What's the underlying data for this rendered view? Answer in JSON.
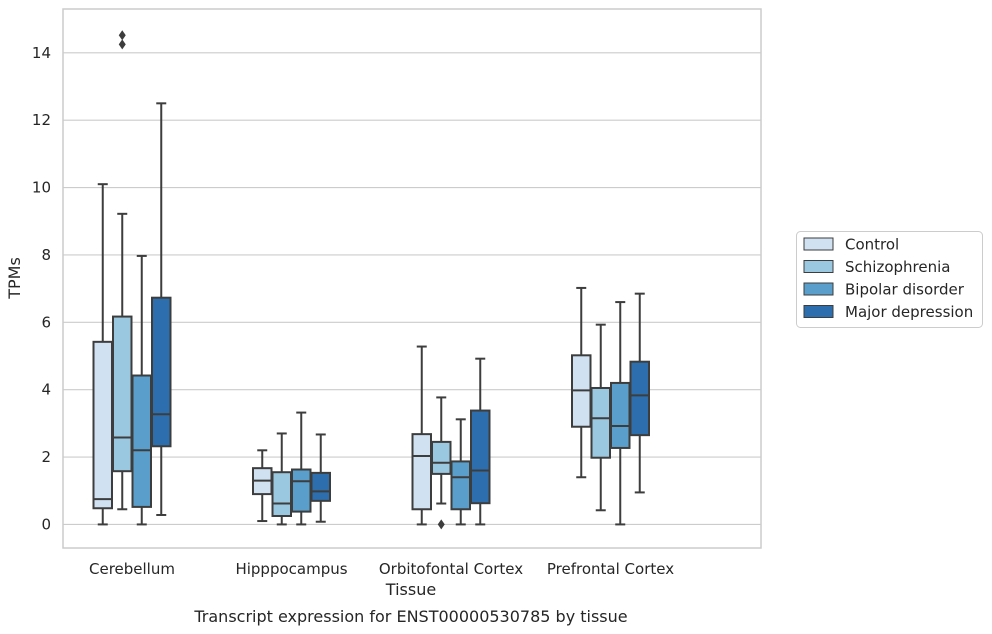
{
  "chart_data": {
    "type": "box",
    "caption": "Transcript expression for ENST00000530785 by tissue",
    "xlabel": "Tissue",
    "ylabel": "TPMs",
    "ylim": [
      -0.7,
      15.3
    ],
    "yticks": [
      0,
      2,
      4,
      6,
      8,
      10,
      12,
      14
    ],
    "grid": "horizontal",
    "legend_position": "right",
    "categories": [
      "Cerebellum",
      "Hipppocampus",
      "Orbitofontal Cortex",
      "Prefrontal Cortex"
    ],
    "series": [
      {
        "name": "Control",
        "color": "#d0e1f2",
        "boxes": [
          {
            "whislo": 0.0,
            "q1": 0.48,
            "median": 0.75,
            "q3": 5.42,
            "whishi": 10.1,
            "fliers": []
          },
          {
            "whislo": 0.1,
            "q1": 0.9,
            "median": 1.3,
            "q3": 1.67,
            "whishi": 2.2,
            "fliers": []
          },
          {
            "whislo": 0.0,
            "q1": 0.45,
            "median": 2.03,
            "q3": 2.68,
            "whishi": 5.28,
            "fliers": []
          },
          {
            "whislo": 1.4,
            "q1": 2.9,
            "median": 3.98,
            "q3": 5.02,
            "whishi": 7.02,
            "fliers": []
          }
        ]
      },
      {
        "name": "Schizophrenia",
        "color": "#9ac8e0",
        "boxes": [
          {
            "whislo": 0.45,
            "q1": 1.58,
            "median": 2.58,
            "q3": 6.17,
            "whishi": 9.22,
            "fliers": [
              14.25,
              14.52
            ]
          },
          {
            "whislo": 0.0,
            "q1": 0.25,
            "median": 0.62,
            "q3": 1.55,
            "whishi": 2.7,
            "fliers": []
          },
          {
            "whislo": 0.62,
            "q1": 1.5,
            "median": 1.83,
            "q3": 2.45,
            "whishi": 3.77,
            "fliers": [
              0.0
            ]
          },
          {
            "whislo": 0.42,
            "q1": 1.98,
            "median": 3.15,
            "q3": 4.05,
            "whishi": 5.93,
            "fliers": []
          }
        ]
      },
      {
        "name": "Bipolar disorder",
        "color": "#5a9fcc",
        "boxes": [
          {
            "whislo": 0.0,
            "q1": 0.52,
            "median": 2.2,
            "q3": 4.42,
            "whishi": 7.97,
            "fliers": []
          },
          {
            "whislo": 0.0,
            "q1": 0.38,
            "median": 1.28,
            "q3": 1.63,
            "whishi": 3.32,
            "fliers": []
          },
          {
            "whislo": 0.0,
            "q1": 0.45,
            "median": 1.4,
            "q3": 1.87,
            "whishi": 3.12,
            "fliers": []
          },
          {
            "whislo": 0.0,
            "q1": 2.27,
            "median": 2.92,
            "q3": 4.2,
            "whishi": 6.6,
            "fliers": []
          }
        ]
      },
      {
        "name": "Major depression",
        "color": "#2d6fae",
        "boxes": [
          {
            "whislo": 0.28,
            "q1": 2.32,
            "median": 3.27,
            "q3": 6.73,
            "whishi": 12.5,
            "fliers": []
          },
          {
            "whislo": 0.08,
            "q1": 0.7,
            "median": 0.98,
            "q3": 1.53,
            "whishi": 2.67,
            "fliers": []
          },
          {
            "whislo": 0.0,
            "q1": 0.63,
            "median": 1.6,
            "q3": 3.38,
            "whishi": 4.92,
            "fliers": []
          },
          {
            "whislo": 0.95,
            "q1": 2.65,
            "median": 3.83,
            "q3": 4.83,
            "whishi": 6.85,
            "fliers": []
          }
        ]
      }
    ]
  },
  "style": {
    "grid_color": "#cccccc",
    "frame_color": "#cccccc",
    "line_color": "#3d3d3d",
    "text_color": "#262626"
  }
}
